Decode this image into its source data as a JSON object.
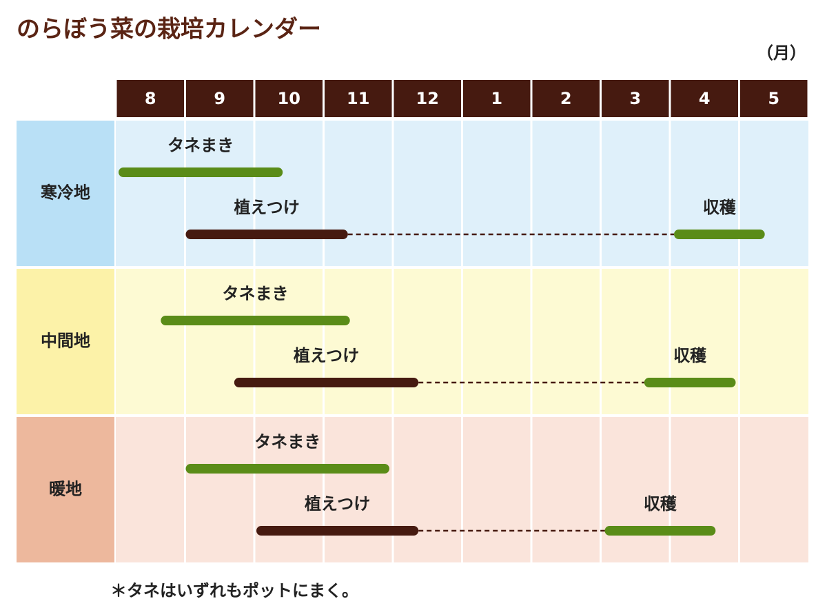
{
  "chart_data": {
    "type": "gantt",
    "title": "のらぼう菜の栽培カレンダー",
    "unit_label": "（月）",
    "categories": [
      "8",
      "9",
      "10",
      "11",
      "12",
      "1",
      "2",
      "3",
      "4",
      "5"
    ],
    "header_color": "#461a10",
    "regions": [
      {
        "name": "寒冷地",
        "label_color": "#b9e0f6",
        "bg_color": "#dff0fa",
        "lines": [
          [
            {
              "name": "タネまき",
              "start": 0.04,
              "end": 2.41,
              "color": "#5a8c18"
            }
          ],
          [
            {
              "name": "植えつけ",
              "start": 1.01,
              "end": 3.35,
              "color": "#461a10"
            },
            {
              "name": "収穫",
              "start": 8.06,
              "end": 9.37,
              "color": "#5a8c18"
            }
          ]
        ]
      },
      {
        "name": "中間地",
        "label_color": "#fcf2a8",
        "bg_color": "#fdfad3",
        "lines": [
          [
            {
              "name": "タネまき",
              "start": 0.65,
              "end": 3.38,
              "color": "#5a8c18"
            }
          ],
          [
            {
              "name": "植えつけ",
              "start": 1.71,
              "end": 4.37,
              "color": "#461a10"
            },
            {
              "name": "収穫",
              "start": 7.63,
              "end": 8.95,
              "color": "#5a8c18"
            }
          ]
        ]
      },
      {
        "name": "暖地",
        "label_color": "#edb89d",
        "bg_color": "#fae4db",
        "lines": [
          [
            {
              "name": "タネまき",
              "start": 1.01,
              "end": 3.95,
              "color": "#5a8c18"
            }
          ],
          [
            {
              "name": "植えつけ",
              "start": 2.03,
              "end": 4.37,
              "color": "#461a10"
            },
            {
              "name": "収穫",
              "start": 7.06,
              "end": 8.66,
              "color": "#5a8c18"
            }
          ]
        ]
      }
    ],
    "footnote": "＊タネはいずれもポットにまく。"
  }
}
